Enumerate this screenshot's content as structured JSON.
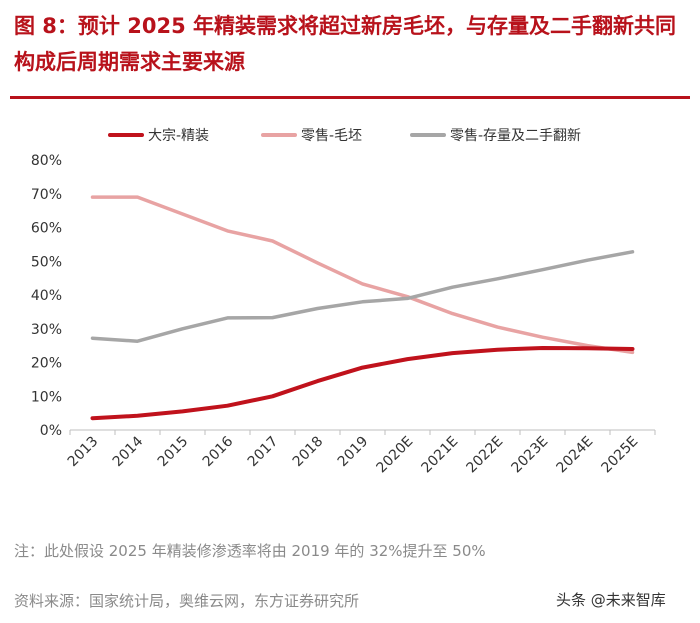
{
  "header": {
    "title": "图 8：预计 2025 年精装需求将超过新房毛坯，与存量及二手翻新共同构成后周期需求主要来源"
  },
  "chart_data": {
    "type": "line",
    "title": "图 8：预计 2025 年精装需求将超过新房毛坯，与存量及二手翻新共同构成后周期需求主要来源",
    "xlabel": "",
    "ylabel": "",
    "ylim": [
      0,
      80
    ],
    "y_ticks": [
      "0%",
      "10%",
      "20%",
      "30%",
      "40%",
      "50%",
      "60%",
      "70%",
      "80%"
    ],
    "categories": [
      "2013",
      "2014",
      "2015",
      "2016",
      "2017",
      "2018",
      "2019",
      "2020E",
      "2021E",
      "2022E",
      "2023E",
      "2024E",
      "2025E"
    ],
    "legend_position": "top",
    "series": [
      {
        "name": "大宗-精装",
        "color": "#c0121c",
        "values": [
          3.5,
          4.2,
          5.5,
          7.2,
          10,
          14.5,
          18.5,
          21,
          22.8,
          23.8,
          24.3,
          24.2,
          24
        ]
      },
      {
        "name": "零售-毛坯",
        "color": "#e8a3a3",
        "values": [
          69,
          69,
          64,
          59,
          56,
          49.5,
          43.3,
          39.5,
          34.5,
          30.5,
          27.5,
          25,
          23
        ]
      },
      {
        "name": "零售-存量及二手翻新",
        "color": "#a6a6a6",
        "values": [
          27.2,
          26.3,
          30,
          33.2,
          33.3,
          36,
          38,
          39,
          42.3,
          44.8,
          47.5,
          50.3,
          52.8
        ]
      }
    ]
  },
  "footer": {
    "note": "注：此处假设 2025 年精装修渗透率将由 2019 年的 32%提升至 50%",
    "source": "资料来源：国家统计局，奥维云网，东方证券研究所",
    "watermark": "头条 @未来智库"
  }
}
